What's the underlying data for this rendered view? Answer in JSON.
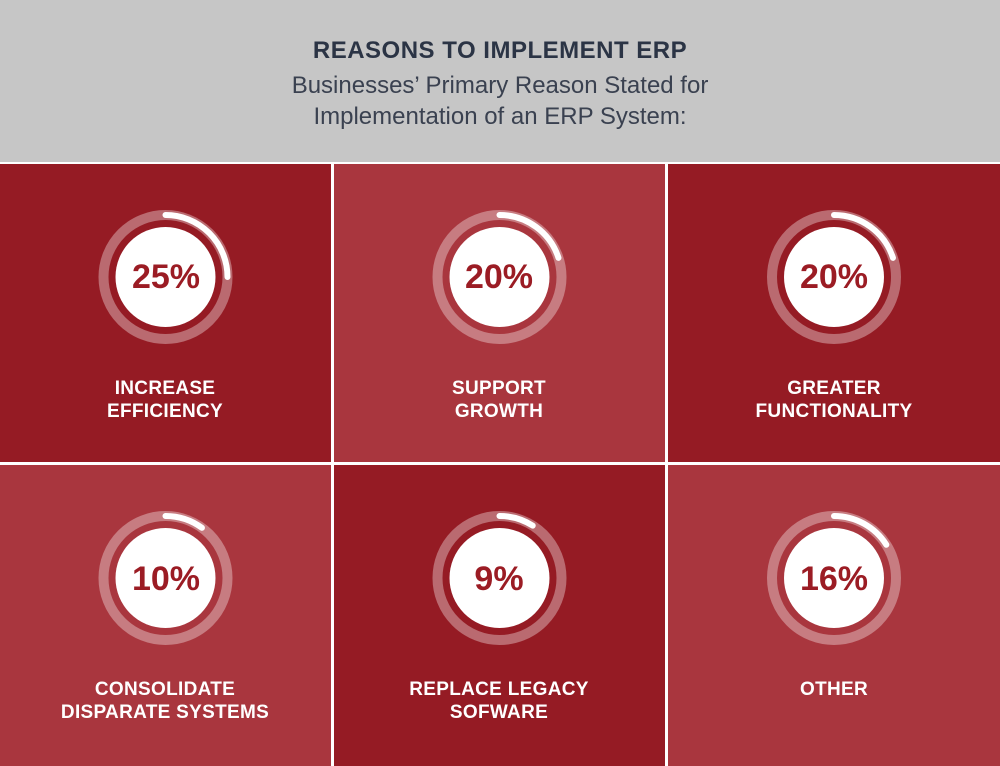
{
  "header": {
    "title": "REASONS TO IMPLEMENT ERP",
    "subtitle_line1": "Businesses’ Primary Reason Stated for",
    "subtitle_line2": "Implementation of an ERP System:"
  },
  "colors": {
    "header_bg": "#c6c6c6",
    "tile_dark": "#951b24",
    "tile_light": "#a9363e",
    "ring_track": "rgba(255,255,255,0.35)",
    "ring_progress": "#ffffff",
    "pct_text": "#9b1c24",
    "label_text": "#ffffff"
  },
  "chart_data": {
    "type": "radial-progress",
    "title": "REASONS TO IMPLEMENT ERP",
    "unit": "%",
    "items": [
      {
        "label_line1": "INCREASE",
        "label_line2": "EFFICIENCY",
        "value": 25,
        "display": "25%",
        "tone": "dark"
      },
      {
        "label_line1": "SUPPORT",
        "label_line2": "GROWTH",
        "value": 20,
        "display": "20%",
        "tone": "light"
      },
      {
        "label_line1": "GREATER",
        "label_line2": "FUNCTIONALITY",
        "value": 20,
        "display": "20%",
        "tone": "dark"
      },
      {
        "label_line1": "CONSOLIDATE",
        "label_line2": "DISPARATE SYSTEMS",
        "value": 10,
        "display": "10%",
        "tone": "light"
      },
      {
        "label_line1": "REPLACE LEGACY",
        "label_line2": "SOFWARE",
        "value": 9,
        "display": "9%",
        "tone": "dark"
      },
      {
        "label_line1": "OTHER",
        "label_line2": "",
        "value": 16,
        "display": "16%",
        "tone": "light"
      }
    ]
  }
}
